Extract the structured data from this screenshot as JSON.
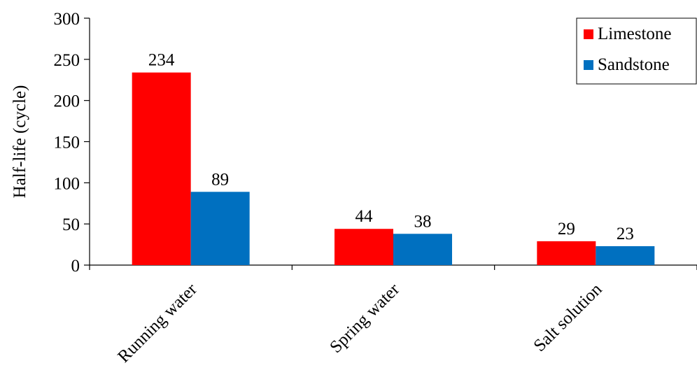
{
  "chart_data": {
    "type": "bar",
    "title": "",
    "xlabel": "",
    "ylabel": "Half-life (cycle)",
    "ylim": [
      0,
      300
    ],
    "yticks": [
      0,
      50,
      100,
      150,
      200,
      250,
      300
    ],
    "categories": [
      "Running water",
      "Spring water",
      "Salt solution"
    ],
    "series": [
      {
        "name": "Limestone",
        "values": [
          234,
          44,
          29
        ],
        "color": "#ff0000"
      },
      {
        "name": "Sandstone",
        "values": [
          89,
          38,
          23
        ],
        "color": "#0070c0"
      }
    ],
    "data_labels": true,
    "grid": false,
    "legend_position": "top-right",
    "category_label_rotation": "-45deg"
  }
}
